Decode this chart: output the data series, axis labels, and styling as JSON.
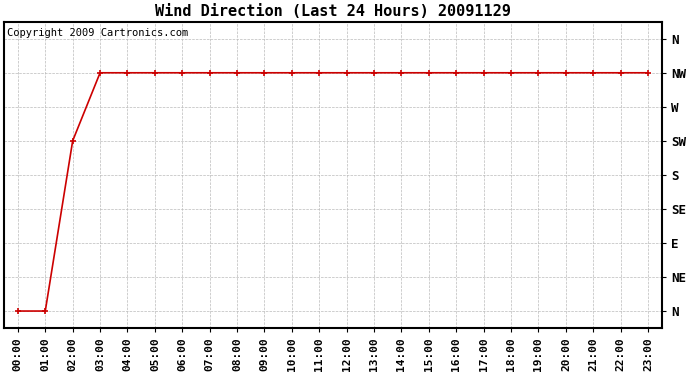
{
  "title": "Wind Direction (Last 24 Hours) 20091129",
  "copyright_text": "Copyright 2009 Cartronics.com",
  "x_labels": [
    "00:00",
    "01:00",
    "02:00",
    "03:00",
    "04:00",
    "05:00",
    "06:00",
    "07:00",
    "08:00",
    "09:00",
    "10:00",
    "11:00",
    "12:00",
    "13:00",
    "14:00",
    "15:00",
    "16:00",
    "17:00",
    "18:00",
    "19:00",
    "20:00",
    "21:00",
    "22:00",
    "23:00"
  ],
  "y_ticks_labels": [
    "N",
    "NE",
    "E",
    "SE",
    "S",
    "SW",
    "W",
    "NW",
    "N"
  ],
  "y_ticks_values": [
    0,
    1,
    2,
    3,
    4,
    5,
    6,
    7,
    8
  ],
  "wind_data": [
    0,
    0,
    5,
    7,
    7,
    7,
    7,
    7,
    7,
    7,
    7,
    7,
    7,
    7,
    7,
    7,
    7,
    7,
    7,
    7,
    7,
    7,
    7,
    7
  ],
  "line_color": "#cc0000",
  "marker": "+",
  "marker_size": 5,
  "grid_color": "#bbbbbb",
  "bg_color": "#ffffff",
  "title_fontsize": 11,
  "tick_fontsize": 9,
  "copyright_fontsize": 7.5
}
